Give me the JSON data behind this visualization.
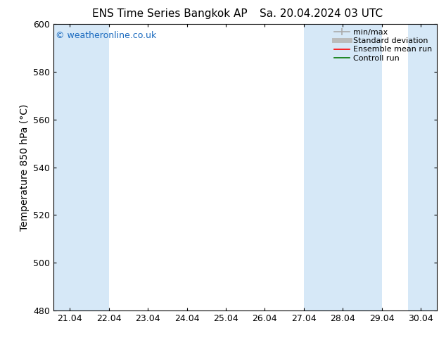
{
  "title_left": "ENS Time Series Bangkok AP",
  "title_right": "Sa. 20.04.2024 03 UTC",
  "ylabel": "Temperature 850 hPa (°C)",
  "ylim": [
    480,
    600
  ],
  "yticks": [
    480,
    500,
    520,
    540,
    560,
    580,
    600
  ],
  "xlim_start": 20.58,
  "xlim_end": 30.42,
  "xtick_labels": [
    "21.04",
    "22.04",
    "23.04",
    "24.04",
    "25.04",
    "26.04",
    "27.04",
    "28.04",
    "29.04",
    "30.04"
  ],
  "xtick_positions": [
    21.0,
    22.0,
    23.0,
    24.0,
    25.0,
    26.0,
    27.0,
    28.0,
    29.0,
    30.0
  ],
  "watermark": "© weatheronline.co.uk",
  "watermark_color": "#1a6abf",
  "bg_color": "#ffffff",
  "plot_bg_color": "#ffffff",
  "shaded_band_color": "#d6e8f7",
  "shaded_bands": [
    {
      "x_start": 20.58,
      "x_end": 22.0
    },
    {
      "x_start": 27.0,
      "x_end": 29.0
    },
    {
      "x_start": 29.67,
      "x_end": 30.42
    }
  ],
  "legend_entries": [
    {
      "label": "min/max",
      "color": "#aaaaaa",
      "linestyle": "-",
      "linewidth": 1.2
    },
    {
      "label": "Standard deviation",
      "color": "#bbbbbb",
      "linestyle": "-",
      "linewidth": 5
    },
    {
      "label": "Ensemble mean run",
      "color": "#ff0000",
      "linestyle": "-",
      "linewidth": 1.2
    },
    {
      "label": "Controll run",
      "color": "#007700",
      "linestyle": "-",
      "linewidth": 1.2
    }
  ],
  "title_fontsize": 11,
  "axis_label_fontsize": 10,
  "tick_fontsize": 9,
  "watermark_fontsize": 9,
  "legend_fontsize": 8,
  "spine_color": "#000000"
}
